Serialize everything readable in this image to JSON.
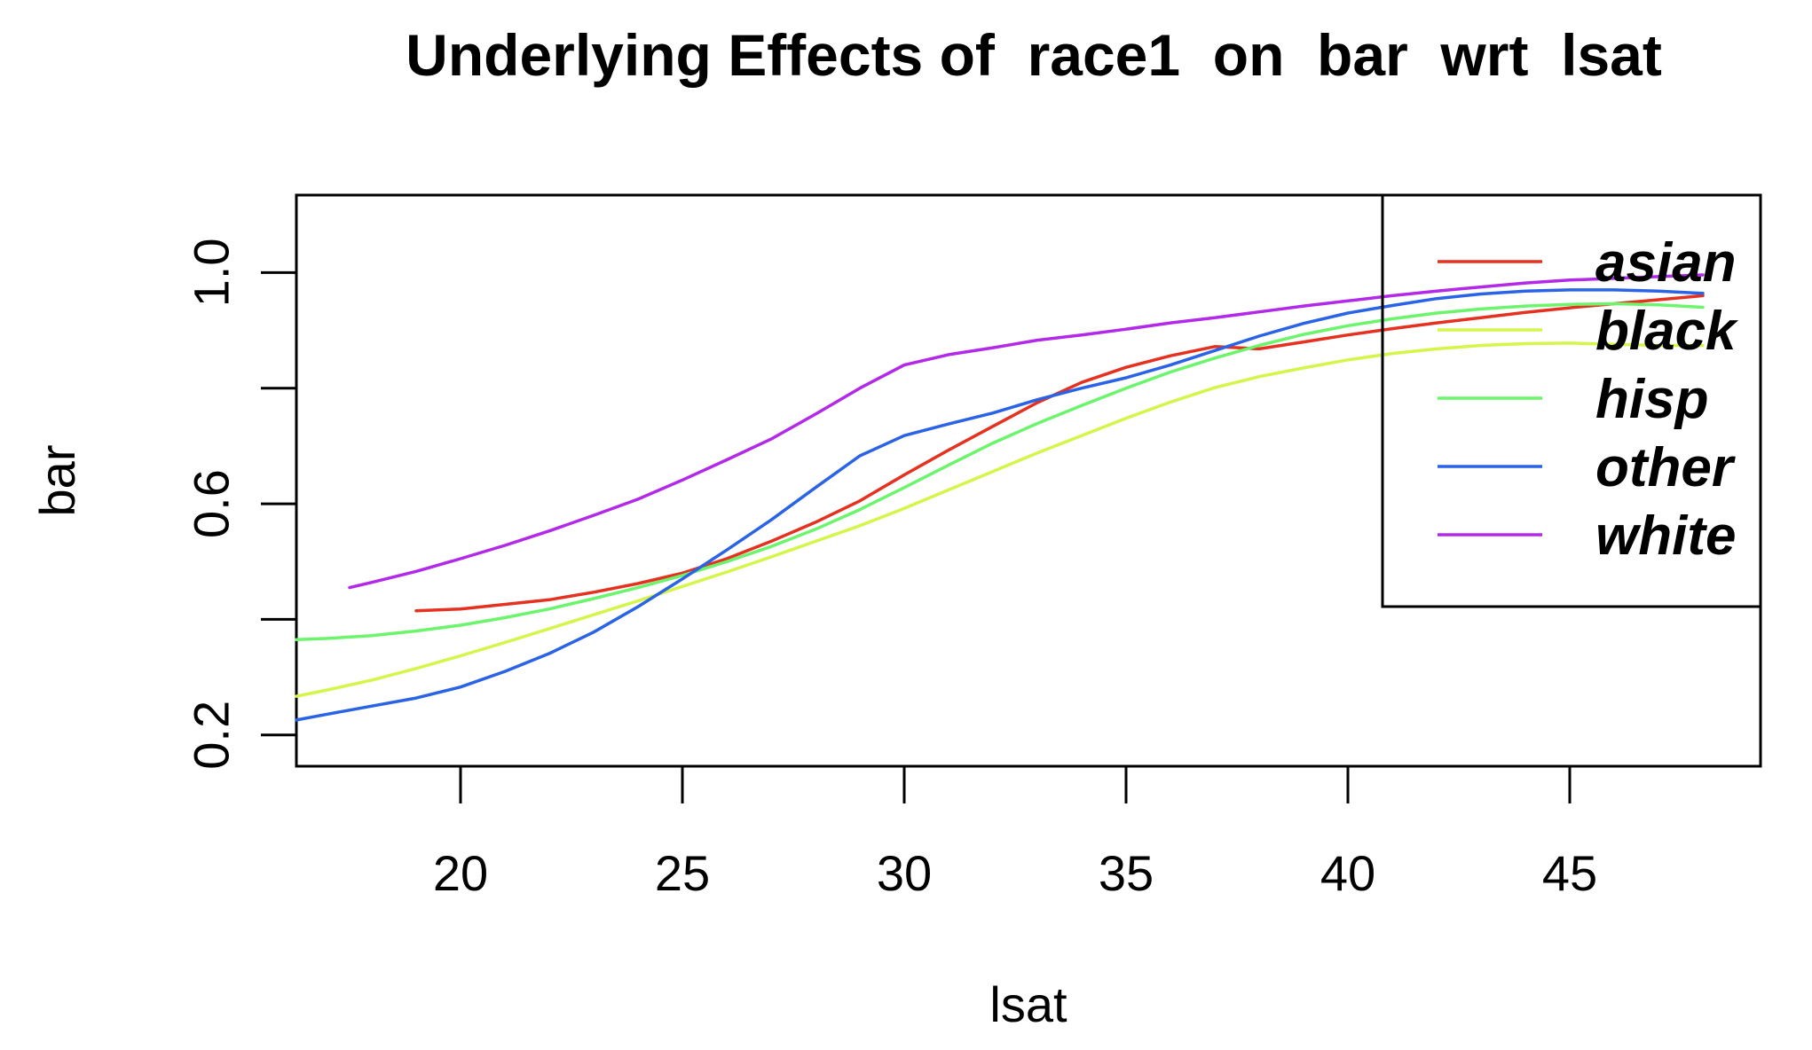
{
  "chart_data": {
    "type": "line",
    "title": "Underlying Effects of  race1  on  bar  wrt  lsat",
    "xlabel": "lsat",
    "ylabel": "bar",
    "xlim": [
      16.3,
      49.3
    ],
    "ylim": [
      0.146,
      1.134
    ],
    "xticks": [
      20,
      25,
      30,
      35,
      40,
      45
    ],
    "xtick_labels": [
      "20",
      "25",
      "30",
      "35",
      "40",
      "45"
    ],
    "yticks": [
      0.2,
      0.4,
      0.6,
      0.8,
      1.0
    ],
    "ytick_labels": [
      "0.2",
      "",
      "0.6",
      "",
      "1.0"
    ],
    "grid": false,
    "legend_position": "top-right",
    "series": [
      {
        "name": "asian",
        "color": "#e53120",
        "points": [
          [
            19.0,
            0.415
          ],
          [
            20.0,
            0.418
          ],
          [
            21.0,
            0.426
          ],
          [
            22.0,
            0.434
          ],
          [
            23.0,
            0.447
          ],
          [
            24.0,
            0.462
          ],
          [
            25.0,
            0.48
          ],
          [
            26.0,
            0.505
          ],
          [
            27.0,
            0.535
          ],
          [
            28.0,
            0.568
          ],
          [
            29.0,
            0.605
          ],
          [
            30.0,
            0.65
          ],
          [
            31.0,
            0.693
          ],
          [
            32.0,
            0.734
          ],
          [
            33.0,
            0.775
          ],
          [
            34.0,
            0.81
          ],
          [
            35.0,
            0.836
          ],
          [
            36.0,
            0.856
          ],
          [
            37.0,
            0.872
          ],
          [
            38.0,
            0.868
          ],
          [
            39.0,
            0.88
          ],
          [
            40.0,
            0.892
          ],
          [
            41.0,
            0.903
          ],
          [
            42.0,
            0.913
          ],
          [
            43.0,
            0.922
          ],
          [
            44.0,
            0.931
          ],
          [
            45.0,
            0.939
          ],
          [
            46.0,
            0.946
          ],
          [
            47.0,
            0.953
          ],
          [
            48.0,
            0.96
          ]
        ]
      },
      {
        "name": "black",
        "color": "#d4f54a",
        "points": [
          [
            16.3,
            0.267
          ],
          [
            17.0,
            0.278
          ],
          [
            18.0,
            0.295
          ],
          [
            19.0,
            0.315
          ],
          [
            20.0,
            0.337
          ],
          [
            21.0,
            0.36
          ],
          [
            22.0,
            0.384
          ],
          [
            23.0,
            0.408
          ],
          [
            24.0,
            0.432
          ],
          [
            25.0,
            0.457
          ],
          [
            26.0,
            0.482
          ],
          [
            27.0,
            0.508
          ],
          [
            28.0,
            0.535
          ],
          [
            29.0,
            0.562
          ],
          [
            30.0,
            0.592
          ],
          [
            31.0,
            0.624
          ],
          [
            32.0,
            0.656
          ],
          [
            33.0,
            0.688
          ],
          [
            34.0,
            0.718
          ],
          [
            35.0,
            0.748
          ],
          [
            36.0,
            0.776
          ],
          [
            37.0,
            0.801
          ],
          [
            38.0,
            0.82
          ],
          [
            39.0,
            0.835
          ],
          [
            40.0,
            0.849
          ],
          [
            41.0,
            0.86
          ],
          [
            42.0,
            0.868
          ],
          [
            43.0,
            0.874
          ],
          [
            44.0,
            0.877
          ],
          [
            45.0,
            0.878
          ],
          [
            46.0,
            0.876
          ],
          [
            47.0,
            0.874
          ],
          [
            48.0,
            0.874
          ]
        ]
      },
      {
        "name": "hisp",
        "color": "#6cf56c",
        "points": [
          [
            16.3,
            0.365
          ],
          [
            17.0,
            0.367
          ],
          [
            18.0,
            0.372
          ],
          [
            19.0,
            0.38
          ],
          [
            20.0,
            0.39
          ],
          [
            21.0,
            0.403
          ],
          [
            22.0,
            0.418
          ],
          [
            23.0,
            0.436
          ],
          [
            24.0,
            0.455
          ],
          [
            25.0,
            0.476
          ],
          [
            26.0,
            0.5
          ],
          [
            27.0,
            0.526
          ],
          [
            28.0,
            0.556
          ],
          [
            29.0,
            0.59
          ],
          [
            30.0,
            0.628
          ],
          [
            31.0,
            0.667
          ],
          [
            32.0,
            0.705
          ],
          [
            33.0,
            0.739
          ],
          [
            34.0,
            0.77
          ],
          [
            35.0,
            0.8
          ],
          [
            36.0,
            0.828
          ],
          [
            37.0,
            0.852
          ],
          [
            38.0,
            0.874
          ],
          [
            39.0,
            0.893
          ],
          [
            40.0,
            0.908
          ],
          [
            41.0,
            0.92
          ],
          [
            42.0,
            0.93
          ],
          [
            43.0,
            0.937
          ],
          [
            44.0,
            0.942
          ],
          [
            45.0,
            0.945
          ],
          [
            46.0,
            0.946
          ],
          [
            47.0,
            0.944
          ],
          [
            48.0,
            0.94
          ]
        ]
      },
      {
        "name": "other",
        "color": "#2a63e5",
        "points": [
          [
            16.3,
            0.226
          ],
          [
            17.0,
            0.236
          ],
          [
            18.0,
            0.25
          ],
          [
            19.0,
            0.264
          ],
          [
            20.0,
            0.283
          ],
          [
            21.0,
            0.31
          ],
          [
            22.0,
            0.341
          ],
          [
            23.0,
            0.378
          ],
          [
            24.0,
            0.422
          ],
          [
            25.0,
            0.47
          ],
          [
            26.0,
            0.52
          ],
          [
            27.0,
            0.572
          ],
          [
            28.0,
            0.628
          ],
          [
            29.0,
            0.683
          ],
          [
            30.0,
            0.718
          ],
          [
            31.0,
            0.738
          ],
          [
            32.0,
            0.757
          ],
          [
            33.0,
            0.78
          ],
          [
            34.0,
            0.8
          ],
          [
            35.0,
            0.818
          ],
          [
            36.0,
            0.84
          ],
          [
            37.0,
            0.865
          ],
          [
            38.0,
            0.89
          ],
          [
            39.0,
            0.912
          ],
          [
            40.0,
            0.93
          ],
          [
            41.0,
            0.943
          ],
          [
            42.0,
            0.955
          ],
          [
            43.0,
            0.963
          ],
          [
            44.0,
            0.968
          ],
          [
            45.0,
            0.97
          ],
          [
            46.0,
            0.97
          ],
          [
            47.0,
            0.968
          ],
          [
            48.0,
            0.964
          ]
        ]
      },
      {
        "name": "white",
        "color": "#b329e8",
        "points": [
          [
            17.5,
            0.455
          ],
          [
            18.0,
            0.464
          ],
          [
            19.0,
            0.483
          ],
          [
            20.0,
            0.505
          ],
          [
            21.0,
            0.528
          ],
          [
            22.0,
            0.553
          ],
          [
            23.0,
            0.58
          ],
          [
            24.0,
            0.608
          ],
          [
            25.0,
            0.641
          ],
          [
            26.0,
            0.676
          ],
          [
            27.0,
            0.712
          ],
          [
            28.0,
            0.755
          ],
          [
            29.0,
            0.8
          ],
          [
            30.0,
            0.84
          ],
          [
            31.0,
            0.858
          ],
          [
            32.0,
            0.87
          ],
          [
            33.0,
            0.883
          ],
          [
            34.0,
            0.892
          ],
          [
            35.0,
            0.902
          ],
          [
            36.0,
            0.913
          ],
          [
            37.0,
            0.922
          ],
          [
            38.0,
            0.932
          ],
          [
            39.0,
            0.942
          ],
          [
            40.0,
            0.951
          ],
          [
            41.0,
            0.96
          ],
          [
            42.0,
            0.968
          ],
          [
            43.0,
            0.975
          ],
          [
            44.0,
            0.982
          ],
          [
            45.0,
            0.987
          ],
          [
            46.0,
            0.99
          ],
          [
            47.0,
            0.993
          ],
          [
            48.0,
            0.996
          ]
        ]
      }
    ]
  }
}
